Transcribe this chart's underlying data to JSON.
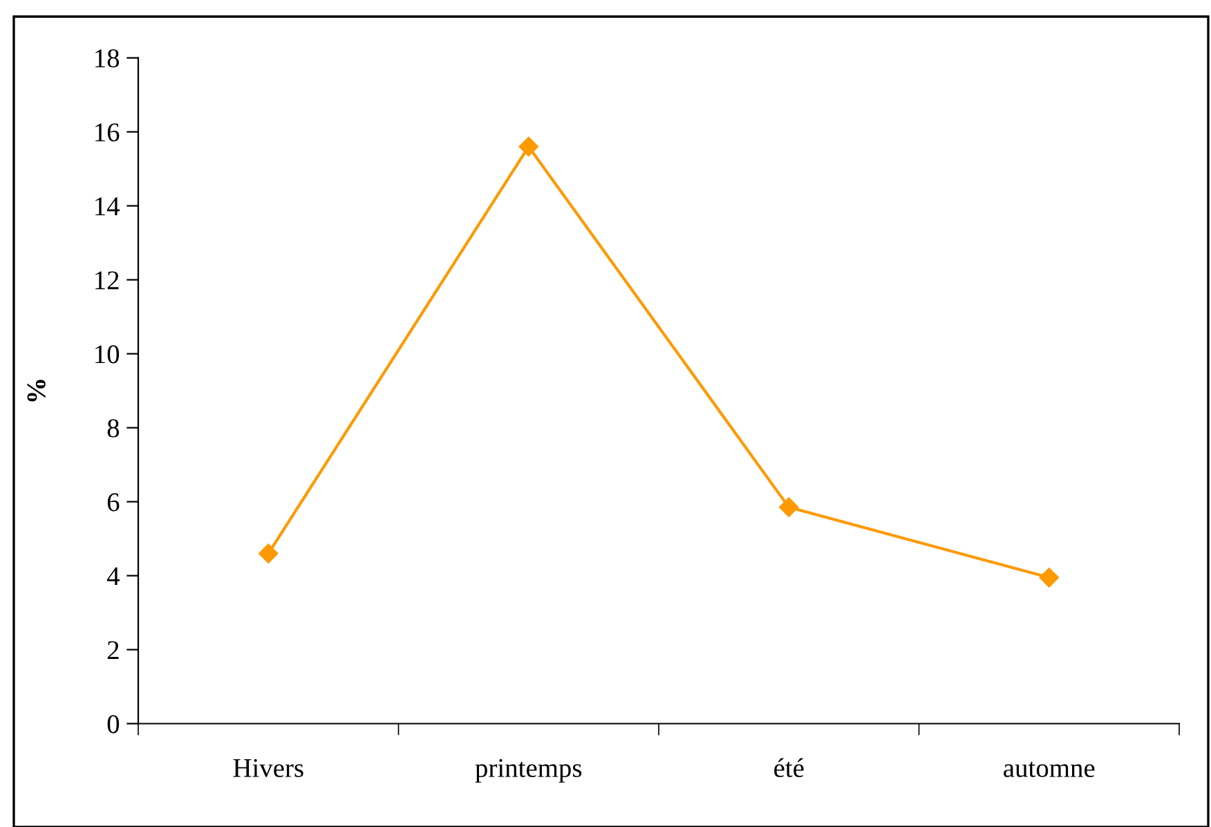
{
  "chart_data": {
    "type": "line",
    "ylabel": "%",
    "categories": [
      "Hivers",
      "printemps",
      "été",
      "automne"
    ],
    "series": [
      {
        "color": "#ff9900",
        "values": [
          4.6,
          15.6,
          5.85,
          3.95
        ]
      }
    ],
    "ylim": [
      0,
      18
    ],
    "yticks": [
      0,
      2,
      4,
      6,
      8,
      10,
      12,
      14,
      16,
      18
    ],
    "grid": false,
    "legend": false,
    "marker": "diamond",
    "line_style": "solid"
  }
}
